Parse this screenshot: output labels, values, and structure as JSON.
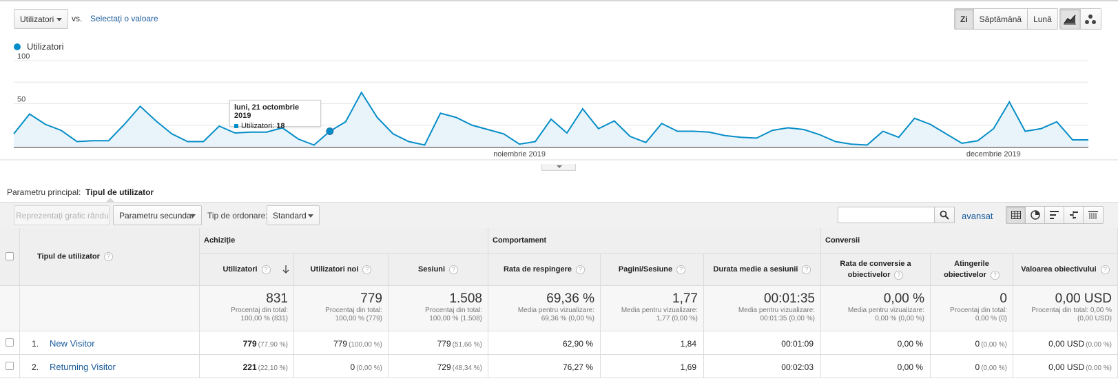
{
  "header": {
    "metric_select": "Utilizatori",
    "vs_label": "vs.",
    "compare_link": "Selectați o valoare",
    "period_buttons": [
      "Zi",
      "Săptămână",
      "Lună"
    ],
    "active_period": "Zi",
    "chart_type_buttons": [
      "line-chart-icon",
      "motion-chart-icon"
    ]
  },
  "chart_data": {
    "type": "area",
    "series": [
      {
        "name": "Utilizatori",
        "color": "#058dc7",
        "values": [
          15,
          38,
          26,
          19,
          6,
          7,
          7,
          26,
          47,
          30,
          15,
          6,
          6,
          24,
          16,
          17,
          17,
          22,
          9,
          2,
          18,
          29,
          63,
          34,
          15,
          6,
          2,
          39,
          34,
          25,
          20,
          15,
          3,
          6,
          32,
          16,
          44,
          21,
          30,
          12,
          5,
          27,
          18,
          18,
          17,
          13,
          11,
          10,
          19,
          22,
          20,
          14,
          6,
          3,
          2,
          18,
          11,
          33,
          26,
          15,
          4,
          7,
          21,
          52,
          18,
          21,
          29,
          8,
          8
        ]
      }
    ],
    "ylim": [
      0,
      100
    ],
    "yticks": [
      50,
      100
    ],
    "x_labels": [
      {
        "label": "noiembrie 2019",
        "index": 32
      },
      {
        "label": "decembrie 2019",
        "index": 62
      }
    ],
    "highlight_index": 20,
    "tooltip": {
      "title": "luni, 21 octombrie 2019",
      "series_label": "Utilizatori:",
      "value": "18"
    },
    "grid": true,
    "legend": "top-left"
  },
  "dimension": {
    "label": "Parametru principal:",
    "value": "Tipul de utilizator"
  },
  "toolbar": {
    "plot_rows": "Reprezentați grafic rândurile",
    "secondary_dim": "Parametru secundar",
    "sort_label": "Tip de ordonare:",
    "sort_value": "Standard",
    "search_placeholder": "",
    "advanced": "avansat"
  },
  "table": {
    "dim_header": "Tipul de utilizator",
    "groups": [
      "Achiziție",
      "Comportament",
      "Conversii"
    ],
    "columns": [
      "Utilizatori",
      "Utilizatori noi",
      "Sesiuni",
      "Rata de respingere",
      "Pagini/Sesiune",
      "Durata medie a sesiunii",
      "Rata de conversie a obiectivelor",
      "Atingerile obiectivelor",
      "Valoarea obiectivului"
    ],
    "totals": [
      {
        "value": "831",
        "sub1": "Procentaj din total:",
        "sub2": "100,00 % (831)"
      },
      {
        "value": "779",
        "sub1": "Procentaj din total:",
        "sub2": "100,00 % (779)"
      },
      {
        "value": "1.508",
        "sub1": "Procentaj din total:",
        "sub2": "100,00 % (1.508)"
      },
      {
        "value": "69,36 %",
        "sub1": "Media pentru vizualizare:",
        "sub2": "69,36 % (0,00 %)"
      },
      {
        "value": "1,77",
        "sub1": "Media pentru vizualizare:",
        "sub2": "1,77 (0,00 %)"
      },
      {
        "value": "00:01:35",
        "sub1": "Media pentru vizualizare:",
        "sub2": "00:01:35 (0,00 %)"
      },
      {
        "value": "0,00 %",
        "sub1": "Media pentru vizualizare:",
        "sub2": "0,00 % (0,00 %)"
      },
      {
        "value": "0",
        "sub1": "Procentaj din total:",
        "sub2": "0,00 % (0)"
      },
      {
        "value": "0,00 USD",
        "sub1": "Procentaj din total: 0,00 %",
        "sub2": "(0,00 USD)"
      }
    ],
    "rows": [
      {
        "num": "1.",
        "name": "New Visitor",
        "cells": [
          {
            "v": "779",
            "p": "(77,90 %)"
          },
          {
            "v": "779",
            "p": "(100,00 %)"
          },
          {
            "v": "779",
            "p": "(51,66 %)"
          },
          {
            "v": "62,90 %",
            "p": ""
          },
          {
            "v": "1,84",
            "p": ""
          },
          {
            "v": "00:01:09",
            "p": ""
          },
          {
            "v": "0,00 %",
            "p": ""
          },
          {
            "v": "0",
            "p": "(0,00 %)"
          },
          {
            "v": "0,00 USD",
            "p": "(0,00 %)"
          }
        ]
      },
      {
        "num": "2.",
        "name": "Returning Visitor",
        "cells": [
          {
            "v": "221",
            "p": "(22,10 %)"
          },
          {
            "v": "0",
            "p": "(0,00 %)"
          },
          {
            "v": "729",
            "p": "(48,34 %)"
          },
          {
            "v": "76,27 %",
            "p": ""
          },
          {
            "v": "1,69",
            "p": ""
          },
          {
            "v": "00:02:03",
            "p": ""
          },
          {
            "v": "0,00 %",
            "p": ""
          },
          {
            "v": "0",
            "p": "(0,00 %)"
          },
          {
            "v": "0,00 USD",
            "p": "(0,00 %)"
          }
        ]
      }
    ]
  }
}
